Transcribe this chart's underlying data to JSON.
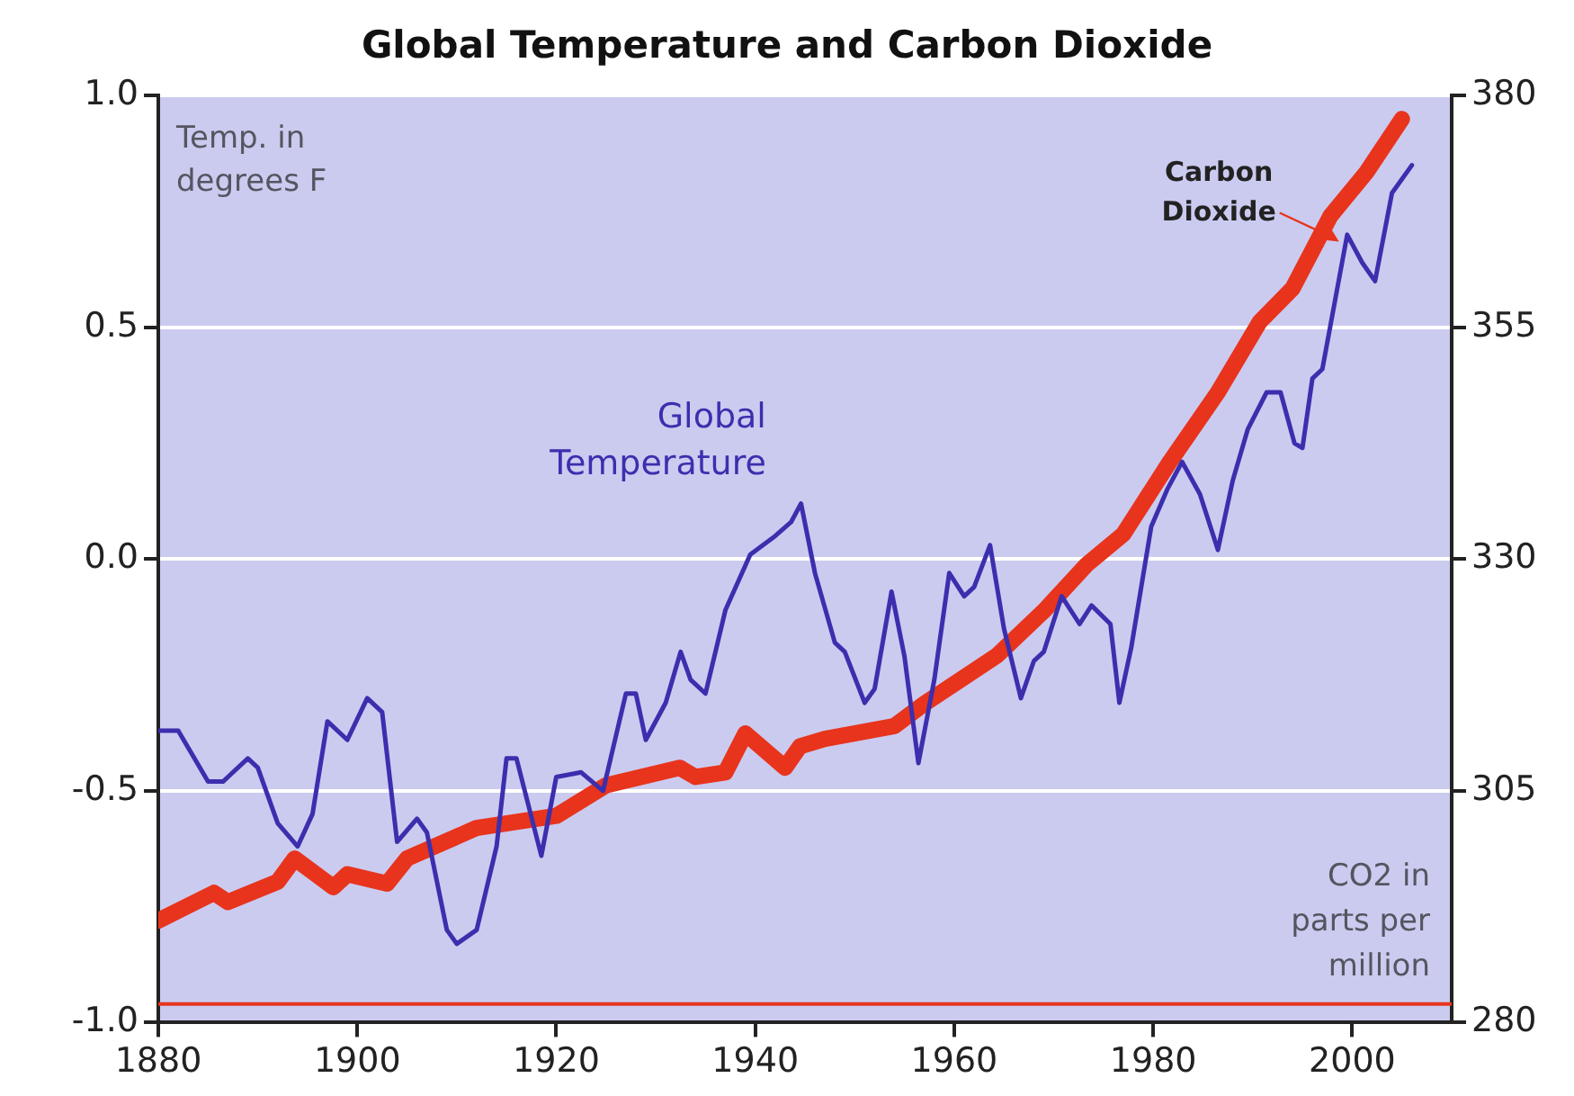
{
  "chart_data": {
    "type": "line",
    "title": "Global Temperature and Carbon Dioxide",
    "ylabel": "Temp. in degrees F",
    "y2label": "CO2 in parts per million",
    "xlim": [
      1880,
      2010
    ],
    "xticks": [
      1880,
      1900,
      1920,
      1940,
      1960,
      1980,
      2000
    ],
    "ylim": [
      -1.0,
      1.0
    ],
    "yticks": [
      {
        "value": -1.0,
        "label": "-1.0"
      },
      {
        "value": -0.5,
        "label": "-0.5"
      },
      {
        "value": 0.0,
        "label": "0.0"
      },
      {
        "value": 0.5,
        "label": "0.5"
      },
      {
        "value": 1.0,
        "label": "1.0"
      }
    ],
    "y2lim": [
      280,
      380
    ],
    "y2ticks": [
      280,
      305,
      330,
      355,
      380
    ],
    "grid": "y",
    "legend": false,
    "marker": "none",
    "line_style": "solid",
    "ref_lines": [
      {
        "axis": "y2",
        "value": 282,
        "color": "#e8341c"
      }
    ],
    "series": [
      {
        "name": "Global Temperature",
        "color": "#3b2fae",
        "x": [
          1880,
          1882,
          1885,
          1886.5,
          1889,
          1890,
          1892,
          1894,
          1895.5,
          1897,
          1899,
          1901,
          1902.5,
          1904,
          1906,
          1907,
          1909,
          1910,
          1912,
          1914,
          1915,
          1916,
          1918.5,
          1920,
          1922.5,
          1924.7,
          1927,
          1928,
          1929,
          1931,
          1932.5,
          1933.5,
          1935,
          1937,
          1939.5,
          1942,
          1943.6,
          1944.6,
          1946,
          1948,
          1949,
          1951,
          1952,
          1953.7,
          1955,
          1956.4,
          1958,
          1959.5,
          1961,
          1962,
          1963.6,
          1965,
          1966.7,
          1968,
          1969,
          1970.8,
          1972.6,
          1973.8,
          1975.7,
          1976.6,
          1977.8,
          1979.8,
          1981.4,
          1982.9,
          1984.7,
          1986.5,
          1988,
          1989.5,
          1991.4,
          1992.8,
          1994.2,
          1995,
          1996,
          1997,
          1999.5,
          2001,
          2002.3,
          2004,
          2006
        ],
        "values": [
          -0.37,
          -0.37,
          -0.48,
          -0.48,
          -0.43,
          -0.45,
          -0.57,
          -0.62,
          -0.55,
          -0.35,
          -0.39,
          -0.3,
          -0.33,
          -0.61,
          -0.56,
          -0.59,
          -0.8,
          -0.83,
          -0.8,
          -0.62,
          -0.43,
          -0.43,
          -0.64,
          -0.47,
          -0.46,
          -0.5,
          -0.29,
          -0.29,
          -0.39,
          -0.31,
          -0.2,
          -0.26,
          -0.29,
          -0.11,
          0.01,
          0.05,
          0.08,
          0.12,
          -0.03,
          -0.18,
          -0.2,
          -0.31,
          -0.28,
          -0.07,
          -0.21,
          -0.44,
          -0.26,
          -0.03,
          -0.08,
          -0.06,
          0.03,
          -0.15,
          -0.3,
          -0.22,
          -0.2,
          -0.08,
          -0.14,
          -0.1,
          -0.14,
          -0.31,
          -0.19,
          0.07,
          0.15,
          0.21,
          0.14,
          0.02,
          0.17,
          0.28,
          0.36,
          0.36,
          0.25,
          0.24,
          0.39,
          0.41,
          0.7,
          0.64,
          0.6,
          0.79,
          0.85
        ]
      },
      {
        "name": "Carbon Dioxide",
        "color": "#e8341c",
        "axis": "y2",
        "x": [
          1880,
          1885.6,
          1887,
          1892,
          1893.7,
          1897.6,
          1899,
          1903,
          1905,
          1912,
          1920,
          1925,
          1932.4,
          1934,
          1937,
          1939,
          1943,
          1944.5,
          1947,
          1954,
          1957,
          1964.3,
          1969,
          1973.3,
          1977,
          1981.6,
          1986.5,
          1990.7,
          1994,
          1997.8,
          2001.4,
          2005
        ],
        "values": [
          291,
          294,
          293,
          295.2,
          297.7,
          294.6,
          296,
          295,
          297.7,
          301,
          302.3,
          305.6,
          307.5,
          306.5,
          307,
          311.2,
          307.5,
          309.8,
          310.6,
          312,
          314.4,
          319.6,
          324.4,
          329.4,
          332.7,
          340.4,
          348,
          355.6,
          359.2,
          367,
          371.7,
          377.5
        ]
      }
    ]
  }
}
